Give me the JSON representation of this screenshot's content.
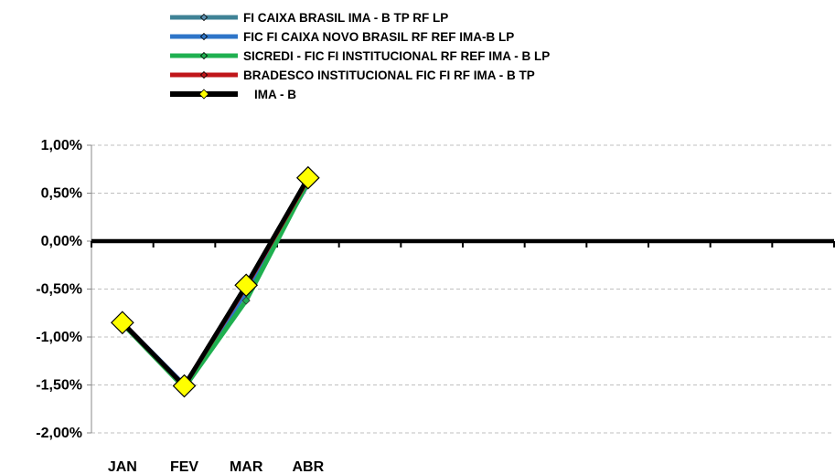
{
  "chart_data": {
    "type": "line",
    "categories": [
      "JAN",
      "FEV",
      "MAR",
      "ABR"
    ],
    "y_tick_labels": [
      "1,00%",
      "0,50%",
      "0,00%",
      "-0,50%",
      "-1,00%",
      "-1,50%",
      "-2,00%"
    ],
    "ylim": [
      -2.0,
      1.0
    ],
    "y_ticks": [
      1.0,
      0.5,
      0.0,
      -0.5,
      -1.0,
      -1.5,
      -2.0
    ],
    "x_slots": 12,
    "grid": "horizontal-dashed",
    "legend_position": "top",
    "series": [
      {
        "name": "FI CAIXA BRASIL IMA - B TP RF LP",
        "values": [
          -0.86,
          -1.51,
          -0.53,
          0.6
        ],
        "color": "#3f8296",
        "marker_color": "#5a8fb0"
      },
      {
        "name": "FIC FI CAIXA NOVO BRASIL RF REF IMA-B LP",
        "values": [
          -0.85,
          -1.5,
          -0.52,
          0.62
        ],
        "color": "#2e75c8",
        "marker_color": "#2e75c8"
      },
      {
        "name": "SICREDI - FIC FI INSTITUCIONAL RF REF IMA - B LP",
        "values": [
          -0.86,
          -1.53,
          -0.62,
          0.62
        ],
        "color": "#1fb050",
        "marker_color": "#1fb050"
      },
      {
        "name": "BRADESCO INSTITUCIONAL FIC FI RF IMA - B TP",
        "values": [
          -0.85,
          -1.51,
          -0.47,
          0.65
        ],
        "color": "#c0161a",
        "marker_color": "#c0161a"
      },
      {
        "name": "IMA - B",
        "values": [
          -0.85,
          -1.51,
          -0.46,
          0.66
        ],
        "color": "#000000",
        "marker_color": "#ffff00"
      }
    ]
  }
}
